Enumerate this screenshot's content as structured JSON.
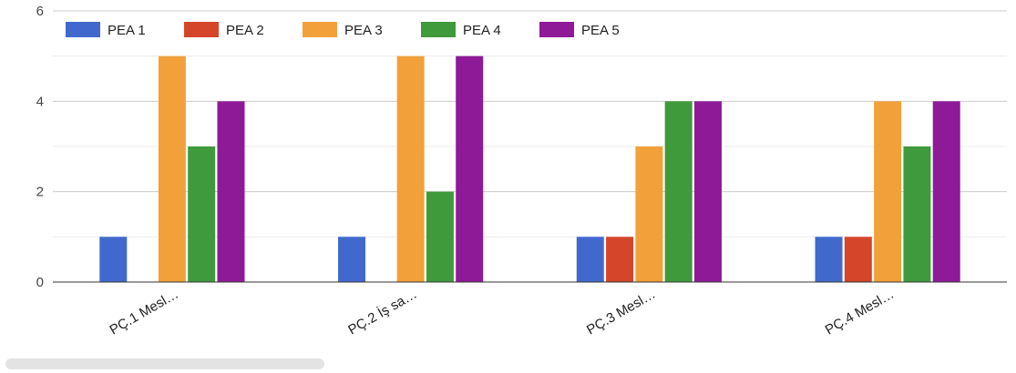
{
  "chart_data": {
    "type": "bar",
    "categories": [
      "PÇ.1 Mesl…",
      "PÇ.2 İş sa…",
      "PÇ.3 Mesl…",
      "PÇ.4 Mesl…"
    ],
    "series": [
      {
        "name": "PEA 1",
        "color": "#4169cd",
        "values": [
          1,
          1,
          1,
          1
        ]
      },
      {
        "name": "PEA 2",
        "color": "#d4452a",
        "values": [
          0,
          0,
          1,
          1
        ]
      },
      {
        "name": "PEA 3",
        "color": "#f2a03a",
        "values": [
          5,
          5,
          3,
          4
        ]
      },
      {
        "name": "PEA 4",
        "color": "#3f9a3b",
        "values": [
          3,
          2,
          4,
          3
        ]
      },
      {
        "name": "PEA 5",
        "color": "#8e1a98",
        "values": [
          4,
          5,
          4,
          4
        ]
      }
    ],
    "ylim": [
      0,
      6
    ],
    "yticks": [
      0,
      2,
      4,
      6
    ],
    "grid": true,
    "legend": "top-left"
  }
}
